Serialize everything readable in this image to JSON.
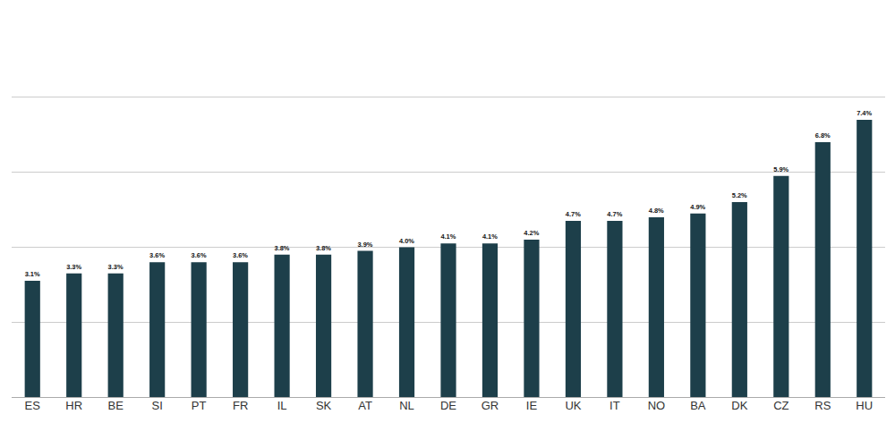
{
  "chart_data": {
    "type": "bar",
    "categories": [
      "ES",
      "HR",
      "BE",
      "SI",
      "PT",
      "FR",
      "IL",
      "SK",
      "AT",
      "NL",
      "DE",
      "GR",
      "IE",
      "UK",
      "IT",
      "NO",
      "BA",
      "DK",
      "CZ",
      "RS",
      "HU"
    ],
    "values": [
      3.1,
      3.3,
      3.3,
      3.6,
      3.6,
      3.6,
      3.8,
      3.8,
      3.9,
      4.0,
      4.1,
      4.1,
      4.2,
      4.7,
      4.7,
      4.8,
      4.9,
      5.2,
      5.9,
      6.8,
      7.4
    ],
    "value_labels": [
      "3.1%",
      "3.3%",
      "3.3%",
      "3.6%",
      "3.6%",
      "3.6%",
      "3.8%",
      "3.8%",
      "3.9%",
      "4.0%",
      "4.1%",
      "4.1%",
      "4.2%",
      "4.7%",
      "4.7%",
      "4.8%",
      "4.9%",
      "5.2%",
      "5.9%",
      "6.8%",
      "7.4%"
    ],
    "color": "#1d3f4a",
    "ylim": [
      0,
      10
    ],
    "yticks": [
      0,
      2,
      4,
      6,
      8,
      10
    ],
    "grid": true,
    "data_labels": true,
    "tick_labels": "x"
  }
}
